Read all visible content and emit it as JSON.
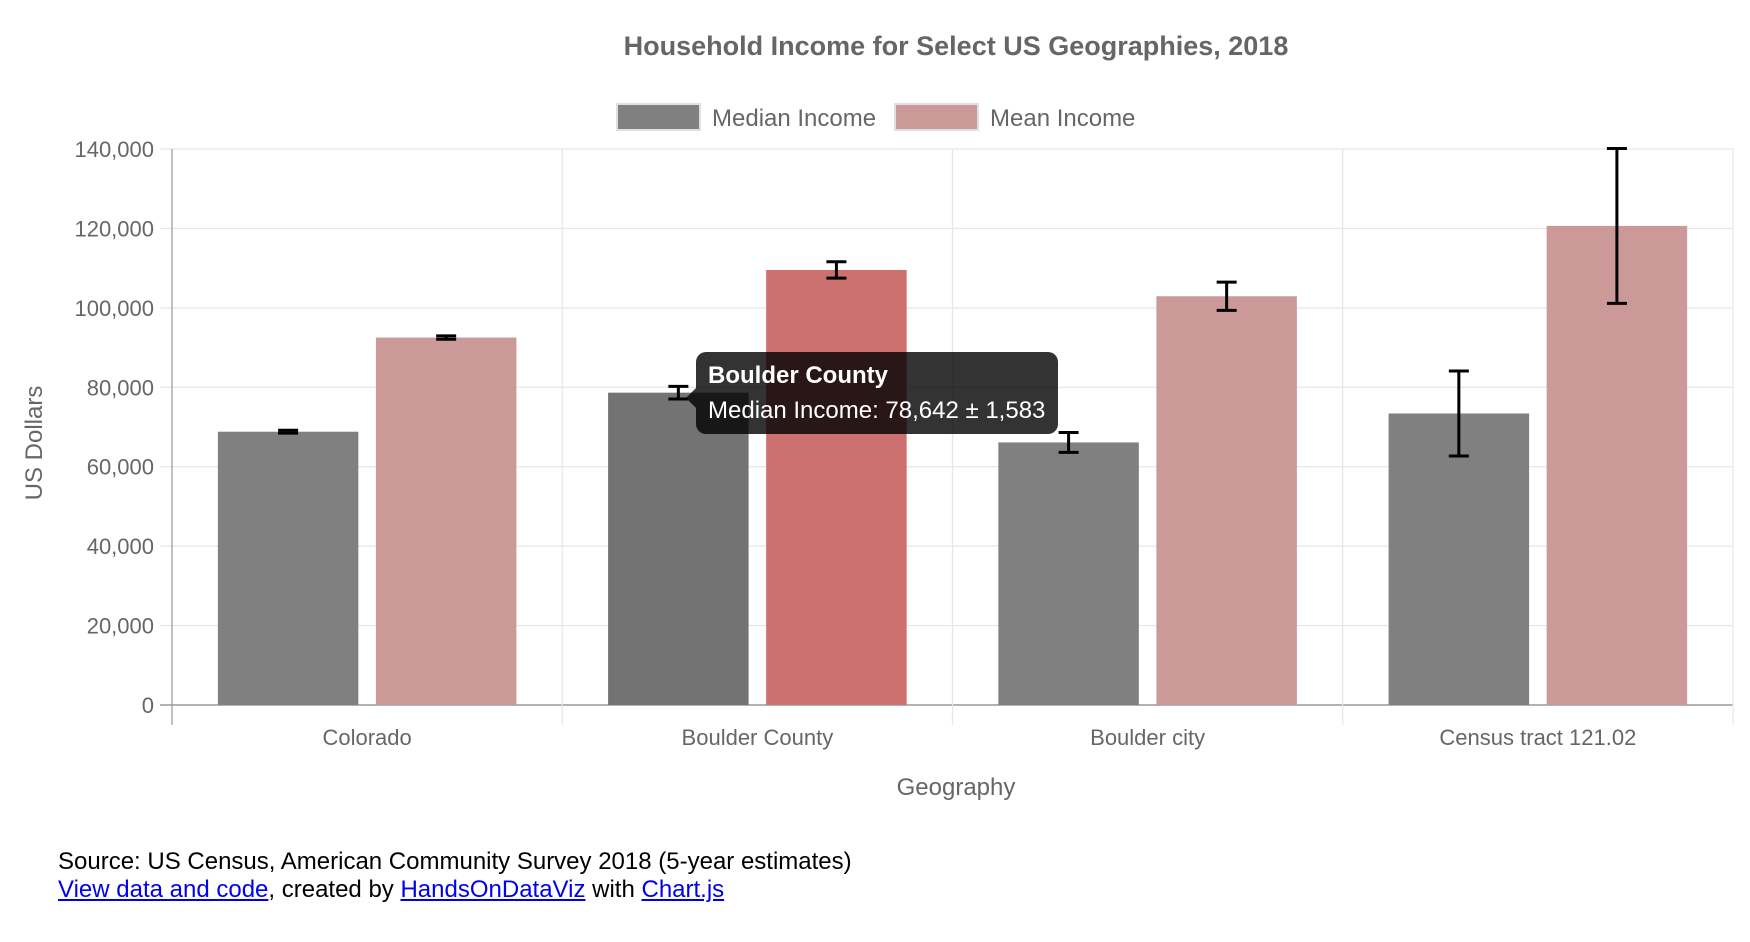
{
  "chart_data": {
    "type": "bar",
    "title": "Household Income for Select US Geographies, 2018",
    "xlabel": "Geography",
    "ylabel": "US Dollars",
    "categories": [
      "Colorado",
      "Boulder County",
      "Boulder city",
      "Census tract 121.02"
    ],
    "series": [
      {
        "name": "Median Income",
        "values": [
          68811,
          78642,
          66117,
          73409
        ],
        "errors": [
          363,
          1583,
          2496,
          10705
        ]
      },
      {
        "name": "Mean Income",
        "values": [
          92520,
          109534,
          102924,
          120633
        ],
        "errors": [
          416,
          2062,
          3566,
          19501
        ]
      }
    ],
    "ylim": [
      0,
      140000
    ],
    "yticks": [
      0,
      20000,
      40000,
      60000,
      80000,
      100000,
      120000,
      140000
    ],
    "ytick_labels": [
      "0",
      "20,000",
      "40,000",
      "60,000",
      "80,000",
      "100,000",
      "120,000",
      "140,000"
    ],
    "grid": true,
    "legend": "top",
    "colors": {
      "median": "#808080",
      "mean": "#cc9999",
      "median_hover": "#737373",
      "mean_hover": "#cc7070",
      "error_bar": "#000000",
      "grid": "#e6e6e6",
      "text": "#666666"
    },
    "hovered": {
      "category_index": 1,
      "series_index": 0
    },
    "tooltip": {
      "title": "Boulder County",
      "body": "Median Income: 78,642 ± 1,583"
    }
  },
  "footer": {
    "source": "Source: US Census, American Community Survey 2018 (5-year estimates)",
    "link1": "View data and code",
    "sep1": ", created by ",
    "link2": "HandsOnDataViz",
    "sep2": " with ",
    "link3": "Chart.js"
  }
}
